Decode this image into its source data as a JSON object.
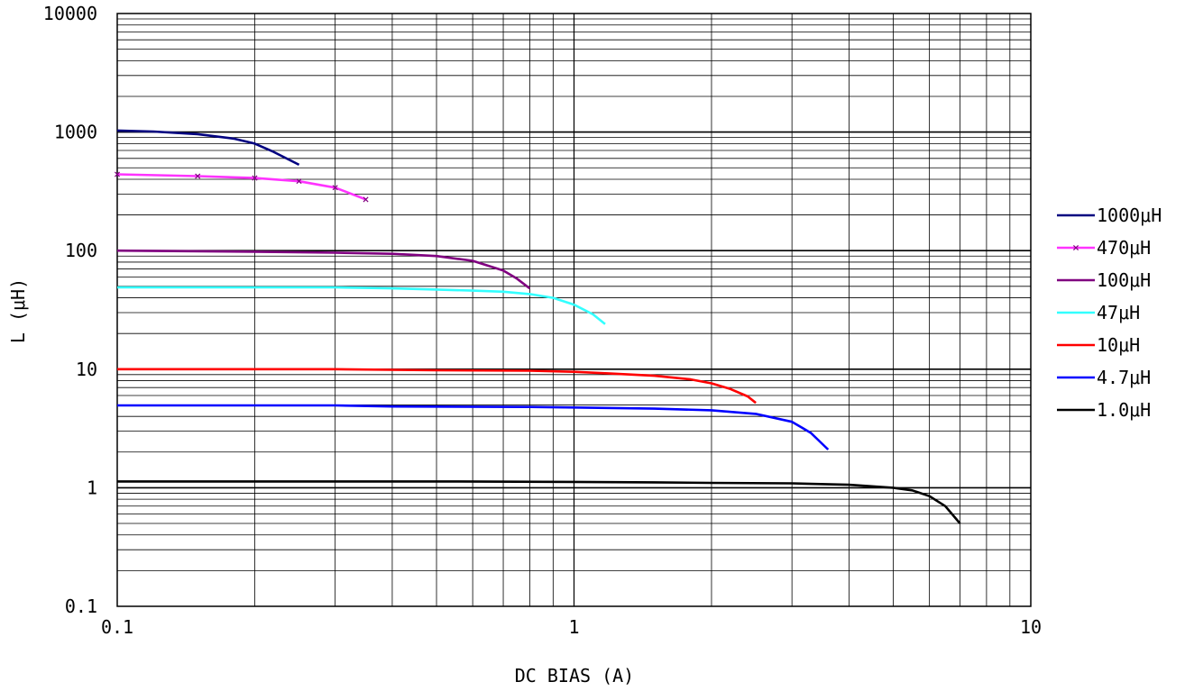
{
  "chart_data": {
    "type": "line",
    "xlabel": "DC BIAS (A)",
    "ylabel": "L (μH)",
    "x_scale": "log",
    "y_scale": "log",
    "xlim": [
      0.1,
      10
    ],
    "ylim": [
      0.1,
      10000
    ],
    "x_ticks": [
      "0.1",
      "1",
      "10"
    ],
    "y_ticks": [
      "0.1",
      "1",
      "10",
      "100",
      "1000",
      "10000"
    ],
    "grid": true,
    "legend_position": "right",
    "series": [
      {
        "name": "1000μH",
        "color": "#000080",
        "marker": "none",
        "x": [
          0.1,
          0.12,
          0.15,
          0.18,
          0.2,
          0.22,
          0.25
        ],
        "y": [
          1030,
          1010,
          960,
          880,
          800,
          680,
          530
        ]
      },
      {
        "name": "470μH",
        "color": "#ff33ff",
        "marker": "x",
        "x": [
          0.1,
          0.15,
          0.2,
          0.25,
          0.3,
          0.35
        ],
        "y": [
          440,
          425,
          410,
          385,
          340,
          270
        ]
      },
      {
        "name": "100μH",
        "color": "#800080",
        "marker": "none",
        "x": [
          0.1,
          0.2,
          0.3,
          0.4,
          0.5,
          0.6,
          0.7,
          0.75,
          0.8
        ],
        "y": [
          100,
          98,
          96,
          94,
          90,
          82,
          68,
          58,
          48
        ]
      },
      {
        "name": "47μH",
        "color": "#33ffff",
        "marker": "none",
        "x": [
          0.1,
          0.2,
          0.3,
          0.4,
          0.5,
          0.6,
          0.7,
          0.8,
          0.9,
          1.0,
          1.1,
          1.17
        ],
        "y": [
          49,
          49,
          49,
          48,
          47,
          46,
          45,
          43,
          40,
          35,
          29,
          24
        ]
      },
      {
        "name": "10μH",
        "color": "#ff0000",
        "marker": "none",
        "x": [
          0.1,
          0.3,
          0.5,
          0.8,
          1.0,
          1.2,
          1.5,
          1.8,
          2.0,
          2.2,
          2.4,
          2.5
        ],
        "y": [
          10,
          10,
          9.8,
          9.7,
          9.5,
          9.2,
          8.8,
          8.2,
          7.6,
          6.8,
          5.9,
          5.2
        ]
      },
      {
        "name": "4.7μH",
        "color": "#0000ff",
        "marker": "none",
        "x": [
          0.1,
          0.3,
          0.4,
          0.8,
          1.0,
          1.5,
          2.0,
          2.5,
          3.0,
          3.3,
          3.6
        ],
        "y": [
          4.95,
          4.95,
          4.85,
          4.8,
          4.75,
          4.65,
          4.5,
          4.2,
          3.6,
          2.9,
          2.1
        ]
      },
      {
        "name": "1.0μH",
        "color": "#000000",
        "marker": "none",
        "x": [
          0.1,
          0.5,
          1.0,
          1.5,
          2.0,
          3.0,
          4.0,
          5.0,
          5.5,
          6.0,
          6.5,
          7.0
        ],
        "y": [
          1.13,
          1.13,
          1.12,
          1.11,
          1.1,
          1.09,
          1.06,
          1.0,
          0.95,
          0.85,
          0.7,
          0.5
        ]
      }
    ]
  }
}
